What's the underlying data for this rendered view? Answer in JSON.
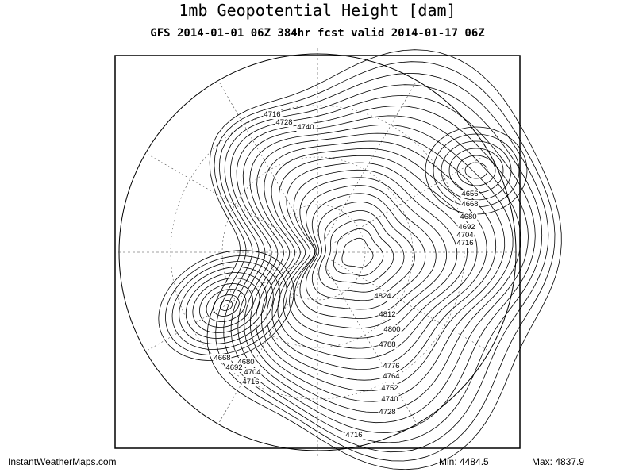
{
  "header": {
    "title": "1mb Geopotential Height [dam]",
    "subtitle": "GFS 2014-01-01 06Z 384hr fcst valid 2014-01-17 06Z"
  },
  "map": {
    "contour_labels": [
      "4716",
      "4728",
      "4740",
      "4656",
      "4668",
      "4680",
      "4692",
      "4704",
      "4716",
      "4824",
      "4812",
      "4800",
      "4788",
      "4776",
      "4764",
      "4752",
      "4740",
      "4728",
      "4716",
      "4668",
      "4680",
      "4692",
      "4704",
      "4716"
    ]
  },
  "footer": {
    "source": "InstantWeatherMaps.com",
    "min": "Min: 4484.5",
    "max": "Max: 4837.9"
  }
}
